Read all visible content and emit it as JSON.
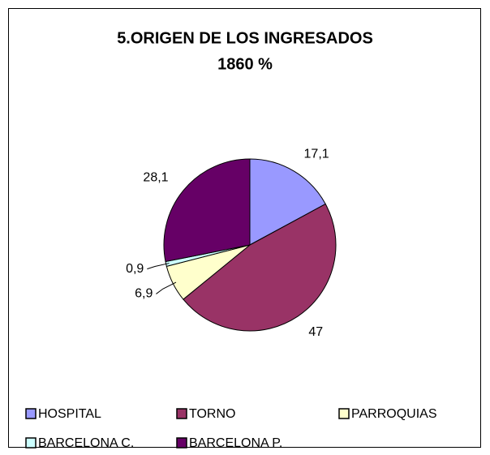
{
  "chart_data": {
    "type": "pie",
    "title": "5.ORIGEN DE LOS INGRESADOS",
    "subtitle": "1860 %",
    "categories": [
      "HOSPITAL",
      "TORNO",
      "PARROQUIAS",
      "BARCELONA C.",
      "BARCELONA P."
    ],
    "values": [
      17.1,
      47,
      6.9,
      0.9,
      28.1
    ],
    "value_labels": [
      "17,1",
      "47",
      "6,9",
      "0,9",
      "28,1"
    ],
    "colors": [
      "#9999ff",
      "#993366",
      "#ffffcc",
      "#ccffff",
      "#660066"
    ],
    "legend": "bottom"
  }
}
